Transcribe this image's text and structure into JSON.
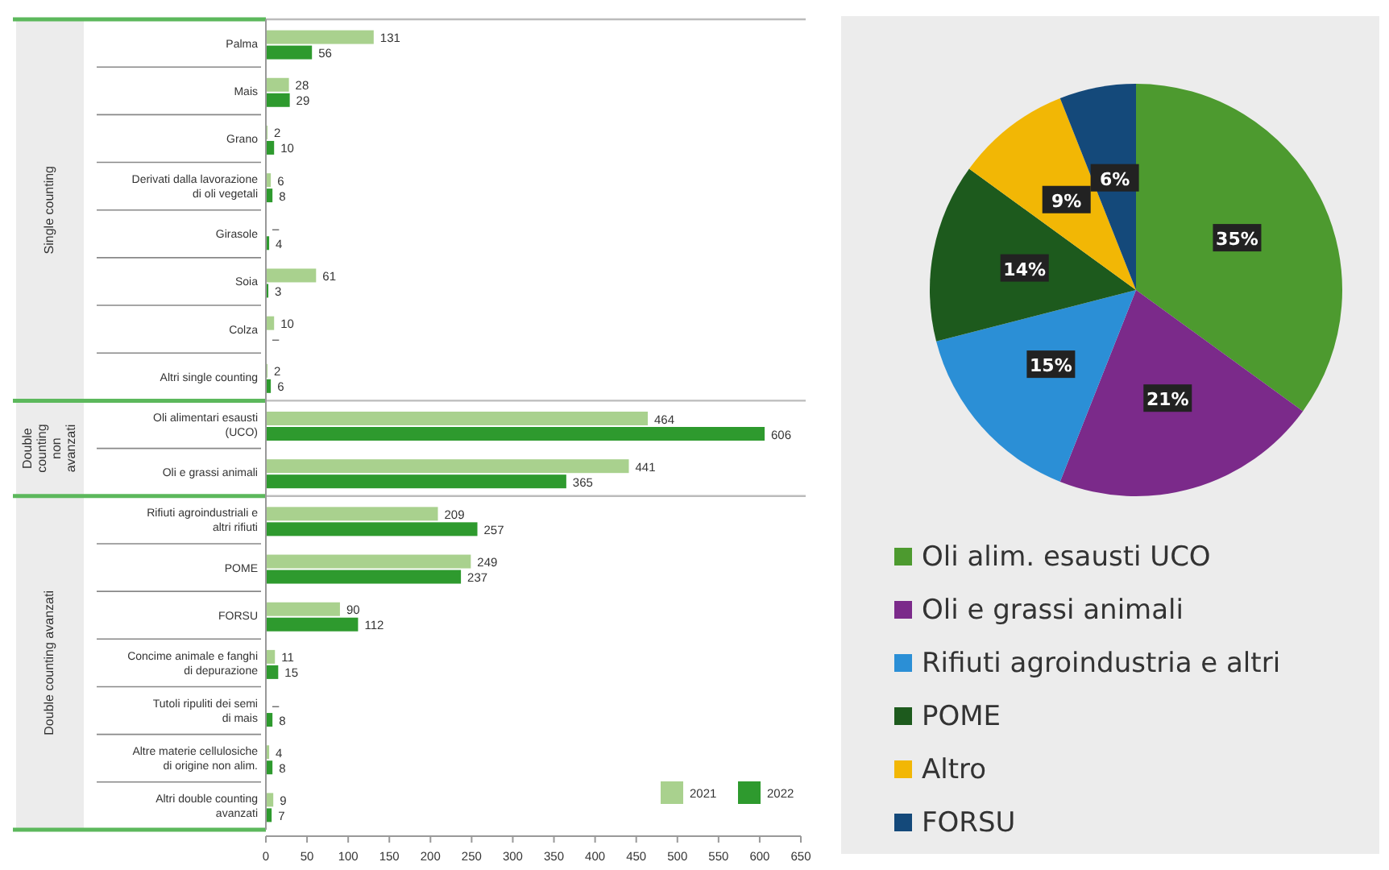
{
  "chart_data": [
    {
      "type": "bar",
      "orientation": "horizontal",
      "categories": [
        "Palma",
        "Mais",
        "Grano",
        "Derivati dalla lavorazione di oli vegetali",
        "Girasole",
        "Soia",
        "Colza",
        "Altri single counting",
        "Oli alimentari esausti (UCO)",
        "Oli e grassi animali",
        "Rifiuti agroindustriali e altri rifiuti",
        "POME",
        "FORSU",
        "Concime animale e fanghi di depurazione",
        "Tutoli ripuliti dei semi di mais",
        "Altre materie cellulosiche di origine non alim.",
        "Altri double counting avanzati"
      ],
      "series": [
        {
          "name": "2021",
          "color": "#a9d18e",
          "values": [
            131,
            28,
            2,
            6,
            null,
            61,
            10,
            2,
            464,
            441,
            209,
            249,
            90,
            11,
            null,
            4,
            9
          ],
          "value_labels": [
            "131",
            "28",
            "2",
            "6",
            "–",
            "61",
            "10",
            "2",
            "464",
            "441",
            "209",
            "249",
            "90",
            "11",
            "–",
            "4",
            "9"
          ]
        },
        {
          "name": "2022",
          "color": "#2e9a2e",
          "values": [
            56,
            29,
            10,
            8,
            4,
            3,
            null,
            6,
            606,
            365,
            257,
            237,
            112,
            15,
            8,
            8,
            7
          ],
          "value_labels": [
            "56",
            "29",
            "10",
            "8",
            "4",
            "3",
            "–",
            "6",
            "606",
            "365",
            "257",
            "237",
            "112",
            "15",
            "8",
            "8",
            "7"
          ]
        }
      ],
      "xlim": [
        0,
        650
      ],
      "xticks": [
        0,
        50,
        100,
        150,
        200,
        250,
        300,
        350,
        400,
        450,
        500,
        550,
        600,
        650
      ],
      "legend": "bottom right",
      "grid": false,
      "annotations": [
        "Single counting",
        "Double counting non avanzati",
        "Double counting avanzati"
      ]
    },
    {
      "type": "pie",
      "categories": [
        "Oli alim. esausti UCO",
        "Oli e grassi animali",
        "Rifiuti agroindustria e altri",
        "POME",
        "Altro",
        "FORSU"
      ],
      "values": [
        35,
        21,
        15,
        14,
        9,
        6
      ],
      "colors": [
        "#4d9a2f",
        "#7b2a8a",
        "#2b8fd6",
        "#1d5a1d",
        "#f2b705",
        "#14497a"
      ],
      "value_labels": [
        "35%",
        "21%",
        "15%",
        "14%",
        "9%",
        "6%"
      ],
      "legend": "bottom"
    }
  ]
}
